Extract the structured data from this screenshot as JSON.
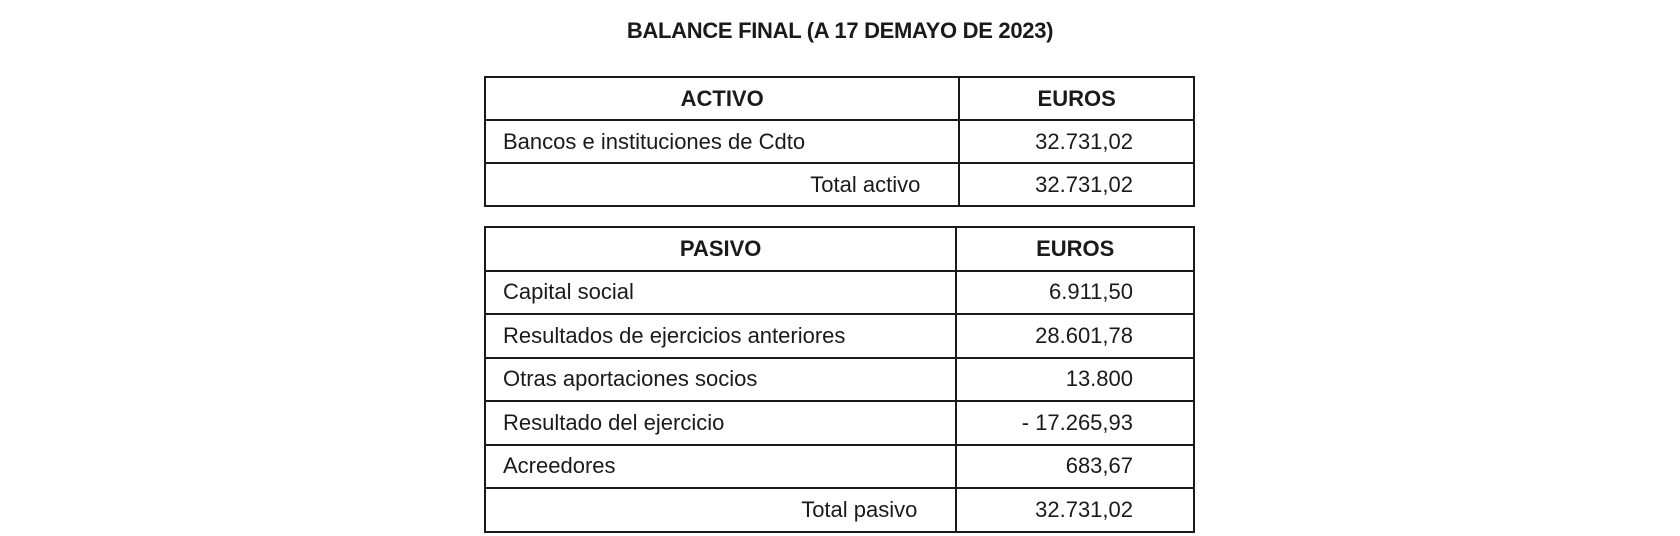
{
  "title": "BALANCE FINAL (A 17 DEMAYO DE 2023)",
  "activo": {
    "headers": [
      "ACTIVO",
      "EUROS"
    ],
    "rows": [
      {
        "label": "Bancos e instituciones de Cdto",
        "value": "32.731,02"
      }
    ],
    "total": {
      "label": "Total activo",
      "value": "32.731,02"
    }
  },
  "pasivo": {
    "headers": [
      "PASIVO",
      "EUROS"
    ],
    "rows": [
      {
        "label": "Capital social",
        "value": "6.911,50"
      },
      {
        "label": "Resultados de ejercicios anteriores",
        "value": "28.601,78"
      },
      {
        "label": "Otras aportaciones socios",
        "value": "13.800"
      },
      {
        "label": "Resultado del ejercicio",
        "value": "- 17.265,93"
      },
      {
        "label": "Acreedores",
        "value": "683,67"
      }
    ],
    "total": {
      "label": "Total pasivo",
      "value": "32.731,02"
    }
  }
}
